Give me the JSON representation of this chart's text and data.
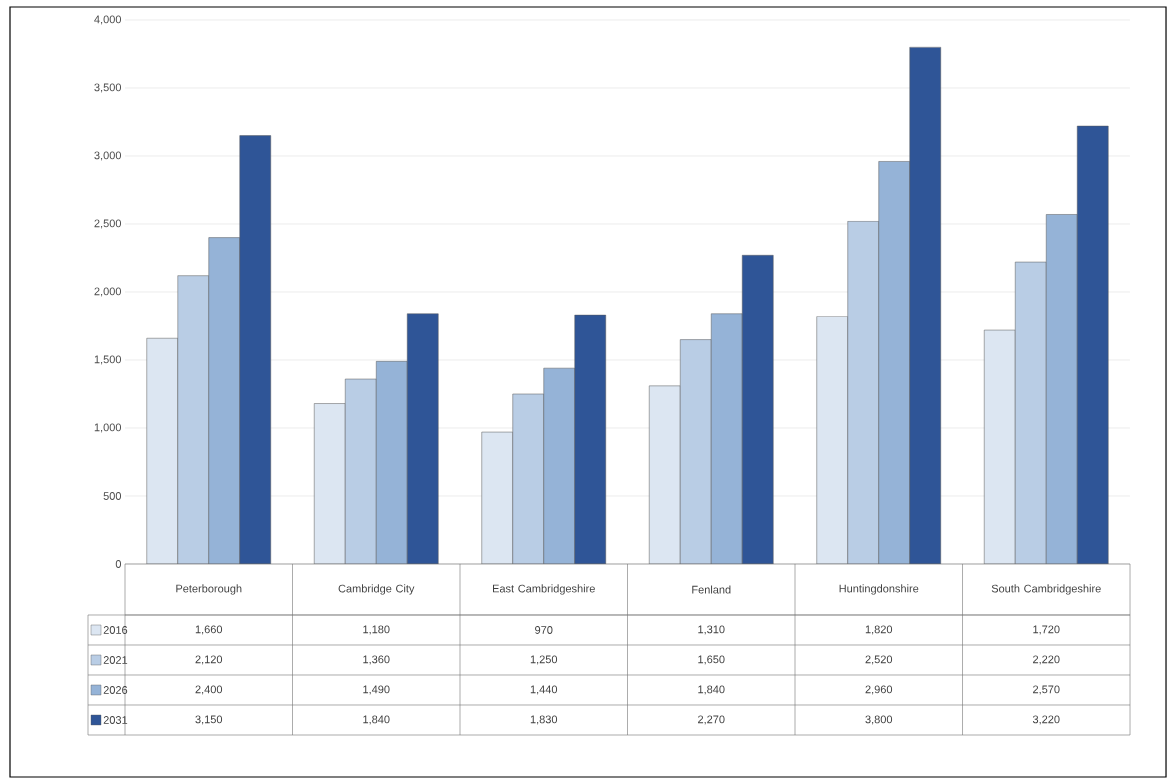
{
  "chart_data": {
    "type": "bar",
    "categories": [
      "Peterborough",
      "Cambridge City",
      "East Cambridgeshire",
      "Fenland",
      "Huntingdonshire",
      "South Cambridgeshire"
    ],
    "series": [
      {
        "name": "2016",
        "color": "#dce6f2",
        "values": [
          1660,
          1180,
          970,
          1310,
          1820,
          1720
        ],
        "value_labels": [
          "1,660",
          "1,180",
          "970",
          "1,310",
          "1,820",
          "1,720"
        ]
      },
      {
        "name": "2021",
        "color": "#b9cde5",
        "values": [
          2120,
          1360,
          1250,
          1650,
          2520,
          2220
        ],
        "value_labels": [
          "2,120",
          "1,360",
          "1,250",
          "1,650",
          "2,520",
          "2,220"
        ]
      },
      {
        "name": "2026",
        "color": "#95b3d7",
        "values": [
          2400,
          1490,
          1440,
          1840,
          2960,
          2570
        ],
        "value_labels": [
          "2,400",
          "1,490",
          "1,440",
          "1,840",
          "2,960",
          "2,570"
        ]
      },
      {
        "name": "2031",
        "color": "#2f5597",
        "values": [
          3150,
          1840,
          1830,
          2270,
          3800,
          3220
        ],
        "value_labels": [
          "3,150",
          "1,840",
          "1,830",
          "2,270",
          "3,800",
          "3,220"
        ]
      }
    ],
    "ylim": [
      0,
      4000
    ],
    "yticks": [
      {
        "value": 0,
        "label": "0"
      },
      {
        "value": 500,
        "label": "500"
      },
      {
        "value": 1000,
        "label": "1,000"
      },
      {
        "value": 1500,
        "label": "1,500"
      },
      {
        "value": 2000,
        "label": "2,000"
      },
      {
        "value": 2500,
        "label": "2,500"
      },
      {
        "value": 3000,
        "label": "3,000"
      },
      {
        "value": 3500,
        "label": "3,500"
      },
      {
        "value": 4000,
        "label": "4,000"
      }
    ],
    "grid": "y",
    "legend": "bottom"
  }
}
